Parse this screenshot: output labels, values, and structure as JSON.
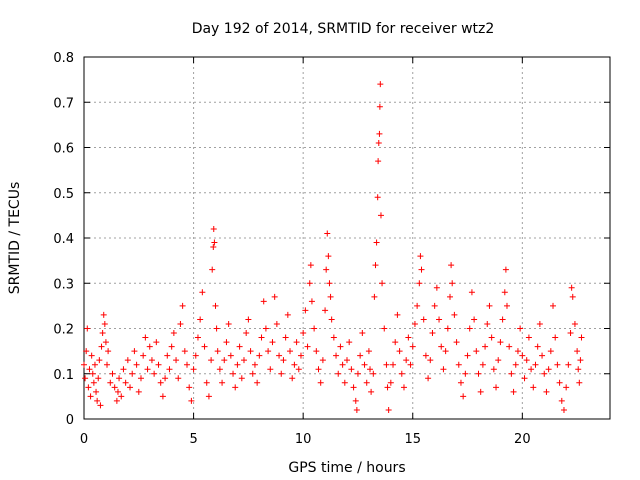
{
  "chart_data": {
    "type": "scatter",
    "title": "Day 192 of 2014, SRMTID for receiver wtz2",
    "xlabel": "GPS time / hours",
    "ylabel": "SRMTID / TECUs",
    "xlim": [
      0,
      24
    ],
    "ylim": [
      0,
      0.8
    ],
    "x_ticks": [
      "0",
      "5",
      "10",
      "15",
      "20"
    ],
    "y_ticks": [
      "0",
      "0.1",
      "0.2",
      "0.3",
      "0.4",
      "0.5",
      "0.6",
      "0.7",
      "0.8"
    ],
    "grid": true,
    "marker": "plus",
    "series": [
      {
        "name": "wtz2",
        "color": "#ff0000",
        "points": [
          [
            0.0,
            0.12
          ],
          [
            0.05,
            0.09
          ],
          [
            0.1,
            0.15
          ],
          [
            0.15,
            0.2
          ],
          [
            0.2,
            0.07
          ],
          [
            0.25,
            0.11
          ],
          [
            0.3,
            0.05
          ],
          [
            0.35,
            0.14
          ],
          [
            0.4,
            0.1
          ],
          [
            0.45,
            0.08
          ],
          [
            0.5,
            0.12
          ],
          [
            0.55,
            0.06
          ],
          [
            0.6,
            0.04
          ],
          [
            0.65,
            0.09
          ],
          [
            0.7,
            0.13
          ],
          [
            0.75,
            0.03
          ],
          [
            0.8,
            0.16
          ],
          [
            0.85,
            0.19
          ],
          [
            0.9,
            0.23
          ],
          [
            0.95,
            0.21
          ],
          [
            1.0,
            0.17
          ],
          [
            1.05,
            0.12
          ],
          [
            1.1,
            0.15
          ],
          [
            1.2,
            0.08
          ],
          [
            1.3,
            0.1
          ],
          [
            1.4,
            0.07
          ],
          [
            1.5,
            0.04
          ],
          [
            1.55,
            0.06
          ],
          [
            1.6,
            0.09
          ],
          [
            1.7,
            0.05
          ],
          [
            1.8,
            0.11
          ],
          [
            1.9,
            0.08
          ],
          [
            2.0,
            0.13
          ],
          [
            2.1,
            0.07
          ],
          [
            2.2,
            0.1
          ],
          [
            2.3,
            0.15
          ],
          [
            2.4,
            0.12
          ],
          [
            2.5,
            0.06
          ],
          [
            2.6,
            0.09
          ],
          [
            2.7,
            0.14
          ],
          [
            2.8,
            0.18
          ],
          [
            2.9,
            0.11
          ],
          [
            3.0,
            0.16
          ],
          [
            3.1,
            0.13
          ],
          [
            3.2,
            0.1
          ],
          [
            3.3,
            0.17
          ],
          [
            3.4,
            0.12
          ],
          [
            3.5,
            0.08
          ],
          [
            3.6,
            0.05
          ],
          [
            3.7,
            0.09
          ],
          [
            3.8,
            0.14
          ],
          [
            3.9,
            0.11
          ],
          [
            4.0,
            0.16
          ],
          [
            4.1,
            0.19
          ],
          [
            4.2,
            0.13
          ],
          [
            4.3,
            0.09
          ],
          [
            4.4,
            0.21
          ],
          [
            4.5,
            0.25
          ],
          [
            4.6,
            0.15
          ],
          [
            4.7,
            0.12
          ],
          [
            4.8,
            0.07
          ],
          [
            4.9,
            0.04
          ],
          [
            5.0,
            0.11
          ],
          [
            5.1,
            0.14
          ],
          [
            5.2,
            0.18
          ],
          [
            5.3,
            0.22
          ],
          [
            5.4,
            0.28
          ],
          [
            5.5,
            0.16
          ],
          [
            5.6,
            0.08
          ],
          [
            5.7,
            0.05
          ],
          [
            5.8,
            0.13
          ],
          [
            5.85,
            0.33
          ],
          [
            5.9,
            0.38
          ],
          [
            5.92,
            0.42
          ],
          [
            5.95,
            0.39
          ],
          [
            6.0,
            0.25
          ],
          [
            6.05,
            0.2
          ],
          [
            6.1,
            0.15
          ],
          [
            6.2,
            0.11
          ],
          [
            6.3,
            0.08
          ],
          [
            6.4,
            0.13
          ],
          [
            6.5,
            0.17
          ],
          [
            6.6,
            0.21
          ],
          [
            6.7,
            0.14
          ],
          [
            6.8,
            0.1
          ],
          [
            6.9,
            0.07
          ],
          [
            7.0,
            0.12
          ],
          [
            7.1,
            0.16
          ],
          [
            7.2,
            0.09
          ],
          [
            7.3,
            0.13
          ],
          [
            7.4,
            0.19
          ],
          [
            7.5,
            0.22
          ],
          [
            7.6,
            0.15
          ],
          [
            7.7,
            0.1
          ],
          [
            7.8,
            0.12
          ],
          [
            7.9,
            0.08
          ],
          [
            8.0,
            0.14
          ],
          [
            8.1,
            0.18
          ],
          [
            8.2,
            0.26
          ],
          [
            8.3,
            0.2
          ],
          [
            8.4,
            0.15
          ],
          [
            8.5,
            0.11
          ],
          [
            8.6,
            0.17
          ],
          [
            8.7,
            0.27
          ],
          [
            8.8,
            0.21
          ],
          [
            8.9,
            0.14
          ],
          [
            9.0,
            0.1
          ],
          [
            9.1,
            0.13
          ],
          [
            9.2,
            0.18
          ],
          [
            9.3,
            0.23
          ],
          [
            9.4,
            0.15
          ],
          [
            9.5,
            0.09
          ],
          [
            9.6,
            0.12
          ],
          [
            9.7,
            0.17
          ],
          [
            9.8,
            0.11
          ],
          [
            9.9,
            0.14
          ],
          [
            10.0,
            0.19
          ],
          [
            10.1,
            0.24
          ],
          [
            10.2,
            0.16
          ],
          [
            10.3,
            0.3
          ],
          [
            10.35,
            0.34
          ],
          [
            10.4,
            0.26
          ],
          [
            10.5,
            0.2
          ],
          [
            10.6,
            0.15
          ],
          [
            10.7,
            0.11
          ],
          [
            10.8,
            0.08
          ],
          [
            10.9,
            0.13
          ],
          [
            11.0,
            0.24
          ],
          [
            11.05,
            0.33
          ],
          [
            11.1,
            0.41
          ],
          [
            11.15,
            0.36
          ],
          [
            11.2,
            0.3
          ],
          [
            11.25,
            0.27
          ],
          [
            11.3,
            0.22
          ],
          [
            11.4,
            0.18
          ],
          [
            11.5,
            0.14
          ],
          [
            11.6,
            0.1
          ],
          [
            11.7,
            0.16
          ],
          [
            11.8,
            0.12
          ],
          [
            11.9,
            0.08
          ],
          [
            12.0,
            0.13
          ],
          [
            12.1,
            0.17
          ],
          [
            12.2,
            0.11
          ],
          [
            12.3,
            0.07
          ],
          [
            12.4,
            0.04
          ],
          [
            12.45,
            0.02
          ],
          [
            12.5,
            0.1
          ],
          [
            12.6,
            0.14
          ],
          [
            12.7,
            0.19
          ],
          [
            12.8,
            0.12
          ],
          [
            12.9,
            0.08
          ],
          [
            13.0,
            0.15
          ],
          [
            13.05,
            0.11
          ],
          [
            13.1,
            0.06
          ],
          [
            13.2,
            0.1
          ],
          [
            13.25,
            0.27
          ],
          [
            13.3,
            0.34
          ],
          [
            13.35,
            0.39
          ],
          [
            13.4,
            0.49
          ],
          [
            13.42,
            0.57
          ],
          [
            13.45,
            0.61
          ],
          [
            13.48,
            0.63
          ],
          [
            13.5,
            0.69
          ],
          [
            13.52,
            0.74
          ],
          [
            13.55,
            0.45
          ],
          [
            13.6,
            0.3
          ],
          [
            13.7,
            0.2
          ],
          [
            13.8,
            0.12
          ],
          [
            13.85,
            0.07
          ],
          [
            13.9,
            0.02
          ],
          [
            14.0,
            0.08
          ],
          [
            14.1,
            0.12
          ],
          [
            14.2,
            0.17
          ],
          [
            14.3,
            0.23
          ],
          [
            14.4,
            0.15
          ],
          [
            14.5,
            0.1
          ],
          [
            14.6,
            0.07
          ],
          [
            14.7,
            0.13
          ],
          [
            14.8,
            0.18
          ],
          [
            14.9,
            0.12
          ],
          [
            15.0,
            0.16
          ],
          [
            15.1,
            0.21
          ],
          [
            15.2,
            0.25
          ],
          [
            15.3,
            0.3
          ],
          [
            15.35,
            0.36
          ],
          [
            15.4,
            0.33
          ],
          [
            15.5,
            0.22
          ],
          [
            15.6,
            0.14
          ],
          [
            15.7,
            0.09
          ],
          [
            15.8,
            0.13
          ],
          [
            15.9,
            0.19
          ],
          [
            16.0,
            0.25
          ],
          [
            16.1,
            0.29
          ],
          [
            16.2,
            0.22
          ],
          [
            16.3,
            0.16
          ],
          [
            16.4,
            0.11
          ],
          [
            16.5,
            0.15
          ],
          [
            16.6,
            0.2
          ],
          [
            16.7,
            0.27
          ],
          [
            16.75,
            0.34
          ],
          [
            16.8,
            0.3
          ],
          [
            16.9,
            0.23
          ],
          [
            17.0,
            0.17
          ],
          [
            17.1,
            0.12
          ],
          [
            17.2,
            0.08
          ],
          [
            17.3,
            0.05
          ],
          [
            17.4,
            0.1
          ],
          [
            17.5,
            0.14
          ],
          [
            17.6,
            0.2
          ],
          [
            17.7,
            0.28
          ],
          [
            17.8,
            0.22
          ],
          [
            17.9,
            0.15
          ],
          [
            18.0,
            0.1
          ],
          [
            18.1,
            0.06
          ],
          [
            18.2,
            0.12
          ],
          [
            18.3,
            0.16
          ],
          [
            18.4,
            0.21
          ],
          [
            18.5,
            0.25
          ],
          [
            18.6,
            0.18
          ],
          [
            18.7,
            0.11
          ],
          [
            18.8,
            0.07
          ],
          [
            18.9,
            0.13
          ],
          [
            19.0,
            0.17
          ],
          [
            19.1,
            0.22
          ],
          [
            19.2,
            0.28
          ],
          [
            19.25,
            0.33
          ],
          [
            19.3,
            0.25
          ],
          [
            19.4,
            0.16
          ],
          [
            19.5,
            0.1
          ],
          [
            19.6,
            0.06
          ],
          [
            19.7,
            0.12
          ],
          [
            19.8,
            0.15
          ],
          [
            19.9,
            0.2
          ],
          [
            20.0,
            0.14
          ],
          [
            20.1,
            0.09
          ],
          [
            20.2,
            0.13
          ],
          [
            20.3,
            0.18
          ],
          [
            20.4,
            0.11
          ],
          [
            20.5,
            0.07
          ],
          [
            20.6,
            0.12
          ],
          [
            20.7,
            0.16
          ],
          [
            20.8,
            0.21
          ],
          [
            20.9,
            0.14
          ],
          [
            21.0,
            0.1
          ],
          [
            21.1,
            0.06
          ],
          [
            21.2,
            0.11
          ],
          [
            21.3,
            0.15
          ],
          [
            21.4,
            0.25
          ],
          [
            21.5,
            0.18
          ],
          [
            21.6,
            0.12
          ],
          [
            21.7,
            0.08
          ],
          [
            21.8,
            0.04
          ],
          [
            21.9,
            0.02
          ],
          [
            22.0,
            0.07
          ],
          [
            22.1,
            0.12
          ],
          [
            22.2,
            0.19
          ],
          [
            22.25,
            0.29
          ],
          [
            22.3,
            0.27
          ],
          [
            22.4,
            0.21
          ],
          [
            22.5,
            0.15
          ],
          [
            22.55,
            0.11
          ],
          [
            22.6,
            0.08
          ],
          [
            22.65,
            0.13
          ],
          [
            22.7,
            0.18
          ]
        ]
      }
    ]
  }
}
